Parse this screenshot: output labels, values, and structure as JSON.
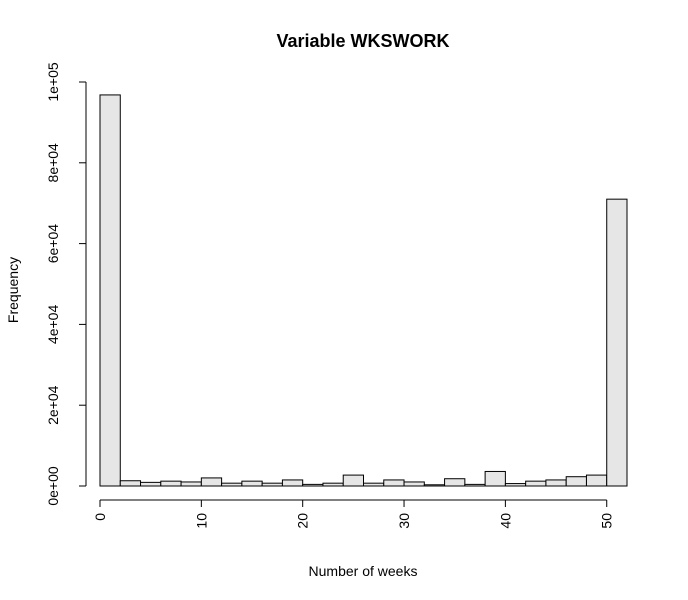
{
  "chart_data": {
    "type": "bar",
    "title": "Variable WKSWORK",
    "xlabel": "Number of weeks",
    "ylabel": "Frequency",
    "bin_edges": [
      0,
      2,
      4,
      6,
      8,
      10,
      12,
      14,
      16,
      18,
      20,
      22,
      24,
      26,
      28,
      30,
      32,
      34,
      36,
      38,
      40,
      42,
      44,
      46,
      48,
      50,
      52
    ],
    "values": [
      96800,
      1300,
      900,
      1200,
      1000,
      2000,
      700,
      1200,
      700,
      1500,
      400,
      700,
      2700,
      700,
      1500,
      1000,
      300,
      1800,
      400,
      3600,
      600,
      1200,
      1500,
      2300,
      2700,
      71000
    ],
    "xlim": [
      0,
      52
    ],
    "ylim": [
      0,
      100000
    ],
    "x_ticks": [
      0,
      10,
      20,
      30,
      40,
      50
    ],
    "x_tick_labels": [
      "0",
      "10",
      "20",
      "30",
      "40",
      "50"
    ],
    "y_ticks": [
      0,
      20000,
      40000,
      60000,
      80000,
      100000
    ],
    "y_tick_labels": [
      "0e+00",
      "2e+04",
      "4e+04",
      "6e+04",
      "8e+04",
      "1e+05"
    ],
    "grid": false,
    "colors": {
      "bar_fill": "#e6e6e6",
      "bar_stroke": "#000000"
    }
  }
}
